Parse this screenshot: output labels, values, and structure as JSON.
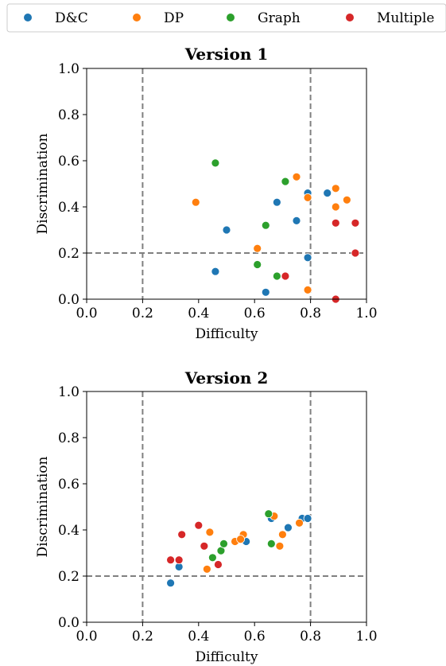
{
  "legend": {
    "placement": "top",
    "entries": [
      {
        "label": "D&C",
        "color": "#1f77b4"
      },
      {
        "label": "DP",
        "color": "#ff7f0e"
      },
      {
        "label": "Graph",
        "color": "#2ca02c"
      },
      {
        "label": "Multiple",
        "color": "#d62728"
      }
    ]
  },
  "chart_data": [
    {
      "type": "scatter",
      "title": "Version 1",
      "xlabel": "Difficulty",
      "ylabel": "Discrimination",
      "xlim": [
        0.0,
        1.0
      ],
      "ylim": [
        0.0,
        1.0
      ],
      "xticks": [
        "0.0",
        "0.2",
        "0.4",
        "0.6",
        "0.8",
        "1.0"
      ],
      "yticks": [
        "0.0",
        "0.2",
        "0.4",
        "0.6",
        "0.8",
        "1.0"
      ],
      "grid": false,
      "reference_lines": {
        "vertical": [
          0.2,
          0.8
        ],
        "horizontal": [
          0.2
        ]
      },
      "series": [
        {
          "name": "D&C",
          "points": [
            [
              0.46,
              0.12
            ],
            [
              0.5,
              0.3
            ],
            [
              0.64,
              0.03
            ],
            [
              0.68,
              0.42
            ],
            [
              0.75,
              0.34
            ],
            [
              0.79,
              0.46
            ],
            [
              0.79,
              0.18
            ],
            [
              0.86,
              0.46
            ]
          ]
        },
        {
          "name": "DP",
          "points": [
            [
              0.39,
              0.42
            ],
            [
              0.61,
              0.22
            ],
            [
              0.75,
              0.53
            ],
            [
              0.79,
              0.44
            ],
            [
              0.79,
              0.04
            ],
            [
              0.89,
              0.48
            ],
            [
              0.89,
              0.4
            ],
            [
              0.93,
              0.43
            ]
          ]
        },
        {
          "name": "Graph",
          "points": [
            [
              0.46,
              0.59
            ],
            [
              0.61,
              0.15
            ],
            [
              0.64,
              0.32
            ],
            [
              0.68,
              0.1
            ],
            [
              0.71,
              0.51
            ]
          ]
        },
        {
          "name": "Multiple",
          "points": [
            [
              0.71,
              0.1
            ],
            [
              0.89,
              0.33
            ],
            [
              0.89,
              0.0
            ],
            [
              0.96,
              0.33
            ],
            [
              0.96,
              0.2
            ]
          ]
        }
      ]
    },
    {
      "type": "scatter",
      "title": "Version 2",
      "xlabel": "Difficulty",
      "ylabel": "Discrimination",
      "xlim": [
        0.0,
        1.0
      ],
      "ylim": [
        0.0,
        1.0
      ],
      "xticks": [
        "0.0",
        "0.2",
        "0.4",
        "0.6",
        "0.8",
        "1.0"
      ],
      "yticks": [
        "0.0",
        "0.2",
        "0.4",
        "0.6",
        "0.8",
        "1.0"
      ],
      "grid": false,
      "reference_lines": {
        "vertical": [
          0.2,
          0.8
        ],
        "horizontal": [
          0.2
        ]
      },
      "series": [
        {
          "name": "D&C",
          "points": [
            [
              0.3,
              0.17
            ],
            [
              0.33,
              0.24
            ],
            [
              0.57,
              0.35
            ],
            [
              0.66,
              0.45
            ],
            [
              0.72,
              0.41
            ],
            [
              0.77,
              0.45
            ],
            [
              0.79,
              0.45
            ]
          ]
        },
        {
          "name": "DP",
          "points": [
            [
              0.43,
              0.23
            ],
            [
              0.44,
              0.39
            ],
            [
              0.53,
              0.35
            ],
            [
              0.56,
              0.38
            ],
            [
              0.55,
              0.36
            ],
            [
              0.67,
              0.46
            ],
            [
              0.69,
              0.33
            ],
            [
              0.7,
              0.38
            ],
            [
              0.76,
              0.43
            ]
          ]
        },
        {
          "name": "Graph",
          "points": [
            [
              0.45,
              0.28
            ],
            [
              0.48,
              0.31
            ],
            [
              0.49,
              0.34
            ],
            [
              0.65,
              0.47
            ],
            [
              0.66,
              0.34
            ]
          ]
        },
        {
          "name": "Multiple",
          "points": [
            [
              0.3,
              0.27
            ],
            [
              0.33,
              0.27
            ],
            [
              0.34,
              0.38
            ],
            [
              0.4,
              0.42
            ],
            [
              0.42,
              0.33
            ],
            [
              0.47,
              0.25
            ]
          ]
        }
      ]
    }
  ]
}
